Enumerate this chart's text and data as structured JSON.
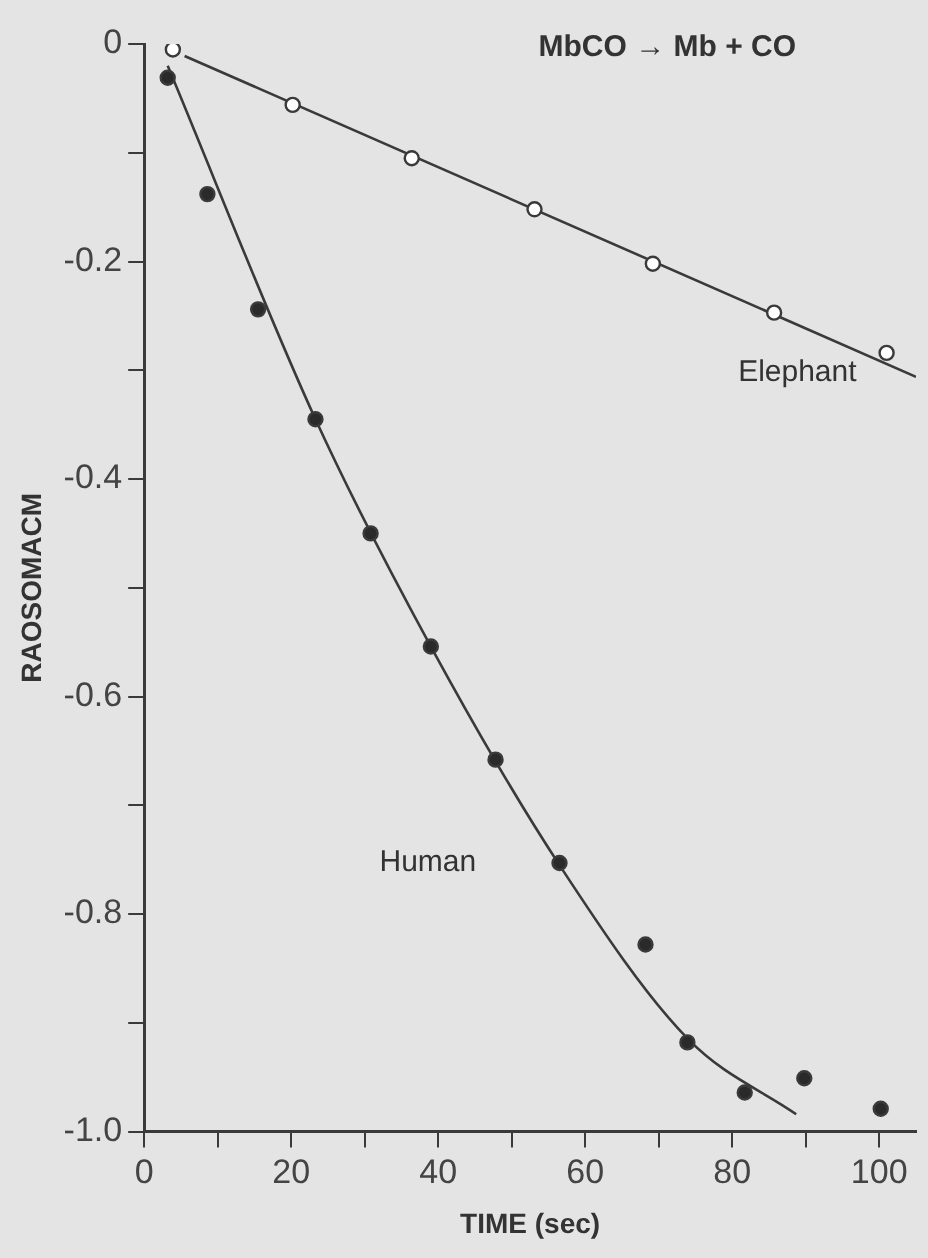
{
  "chart_data": {
    "type": "scatter",
    "title": "MbCO → Mb + CO",
    "xlabel": "TIME (sec)",
    "ylabel": "RAOSOMACM",
    "xlim": [
      0,
      105
    ],
    "xticks": [
      0,
      {
        "value": 10,
        "label": null
      },
      20,
      {
        "value": 30,
        "label": null
      },
      40,
      {
        "value": 50,
        "label": null
      },
      60,
      {
        "value": 70,
        "label": null
      },
      80,
      {
        "value": 90,
        "label": null
      },
      100
    ],
    "ylim": [
      -1.0,
      0
    ],
    "yticks": [
      {
        "value": -1.0,
        "label": "-1.0"
      },
      {
        "value": -0.9,
        "label": null
      },
      {
        "value": -0.8,
        "label": "-0.8"
      },
      {
        "value": -0.7,
        "label": null
      },
      {
        "value": -0.6,
        "label": "-0.6"
      },
      {
        "value": -0.5,
        "label": null
      },
      {
        "value": -0.4,
        "label": "-0.4"
      },
      {
        "value": -0.3,
        "label": null
      },
      {
        "value": -0.2,
        "label": "-0.2"
      },
      {
        "value": -0.1,
        "label": null
      },
      0
    ],
    "grid": false,
    "legend": false,
    "series": [
      {
        "name": "Elephant",
        "marker": "circle",
        "color": "#ffffff",
        "x": [
          3.9,
          20.2,
          36.4,
          53.1,
          69.2,
          85.7,
          101
        ],
        "values": [
          -0.005,
          -0.056,
          -0.105,
          -0.152,
          -0.202,
          -0.247,
          -0.284
        ]
      },
      {
        "type": "line",
        "marker": "none",
        "line_style": "solid",
        "color": "#3a3a3a",
        "x": [
          5.5,
          105
        ],
        "values": [
          -0.011,
          -0.306
        ]
      },
      {
        "name": "Human",
        "marker": "circle",
        "color": "#2a2a2a",
        "x": [
          3.2,
          8.6,
          15.5,
          23.3,
          30.8,
          39.0,
          47.8,
          56.5,
          68.2,
          73.9,
          81.7,
          89.8,
          100.2
        ],
        "values": [
          -0.031,
          -0.138,
          -0.244,
          -0.345,
          -0.45,
          -0.554,
          -0.658,
          -0.753,
          -0.828,
          -0.918,
          -0.964,
          -0.951,
          -0.979
        ]
      },
      {
        "type": "line",
        "marker": "none",
        "line_style": "solid",
        "color": "#3a3a3a",
        "x": [
          3.2,
          23.3,
          39.0,
          56.5,
          74.0,
          88.7
        ],
        "values": [
          -0.02,
          -0.345,
          -0.554,
          -0.755,
          -0.915,
          -0.984
        ]
      }
    ]
  }
}
